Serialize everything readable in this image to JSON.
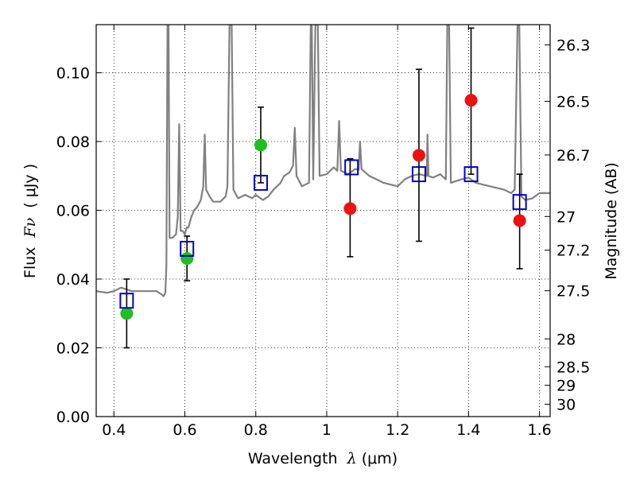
{
  "chart_data": {
    "type": "scatter",
    "xlabel_prefix": "Wavelength  ",
    "xlabel_symbol": "λ",
    "xlabel_unit": " (μm)",
    "ylabel_prefix": "Flux  ",
    "ylabel_symbol": "Fν",
    "ylabel_unit": "  ( μJy )",
    "y2label": "Magnitude (AB)",
    "xlim": [
      0.35,
      1.63
    ],
    "ylim": [
      0.0,
      0.114
    ],
    "x_ticks": [
      0.4,
      0.6,
      0.8,
      1.0,
      1.2,
      1.4,
      1.6
    ],
    "x_tick_labels": [
      "0.4",
      "0.6",
      "0.8",
      "1",
      "1.2",
      "1.4",
      "1.6"
    ],
    "y_ticks": [
      0.0,
      0.02,
      0.04,
      0.06,
      0.08,
      0.1
    ],
    "y_tick_labels": [
      "0.00",
      "0.02",
      "0.04",
      "0.06",
      "0.08",
      "0.10"
    ],
    "y2_ticks": [
      {
        "label": "26.3",
        "flux": 0.1081
      },
      {
        "label": "26.5",
        "flux": 0.0917
      },
      {
        "label": "26.7",
        "flux": 0.0761
      },
      {
        "label": "27",
        "flux": 0.0582
      },
      {
        "label": "27.2",
        "flux": 0.0484
      },
      {
        "label": "27.5",
        "flux": 0.0366
      },
      {
        "label": "28",
        "flux": 0.0226
      },
      {
        "label": "28.5",
        "flux": 0.0145
      },
      {
        "label": "29",
        "flux": 0.0091
      },
      {
        "label": "30",
        "flux": 0.0036
      }
    ],
    "grid": true,
    "colors": {
      "model": "#808080",
      "green": "#1fbf1f",
      "red": "#ee1111",
      "square": "#0000cc",
      "errorbar": "#000000"
    },
    "series": [
      {
        "kind": "errorbars",
        "points": [
          {
            "x": 0.436,
            "y": 0.03,
            "ylow": 0.02,
            "yhigh": 0.04
          },
          {
            "x": 0.606,
            "y": 0.046,
            "ylow": 0.0395,
            "yhigh": 0.0525
          },
          {
            "x": 0.814,
            "y": 0.079,
            "ylow": 0.068,
            "yhigh": 0.09
          },
          {
            "x": 1.066,
            "y": 0.0605,
            "ylow": 0.0465,
            "yhigh": 0.075
          },
          {
            "x": 1.26,
            "y": 0.076,
            "ylow": 0.051,
            "yhigh": 0.101
          },
          {
            "x": 1.407,
            "y": 0.092,
            "ylow": 0.0705,
            "yhigh": 0.113
          },
          {
            "x": 1.544,
            "y": 0.057,
            "ylow": 0.043,
            "yhigh": 0.0705
          }
        ]
      },
      {
        "kind": "observed-green",
        "points": [
          {
            "x": 0.436,
            "y": 0.03
          },
          {
            "x": 0.606,
            "y": 0.046
          },
          {
            "x": 0.814,
            "y": 0.079
          }
        ]
      },
      {
        "kind": "observed-red",
        "points": [
          {
            "x": 1.066,
            "y": 0.0605
          },
          {
            "x": 1.26,
            "y": 0.076
          },
          {
            "x": 1.407,
            "y": 0.092
          },
          {
            "x": 1.544,
            "y": 0.057
          }
        ]
      },
      {
        "kind": "model-squares",
        "points": [
          {
            "x": 0.436,
            "y": 0.0337
          },
          {
            "x": 0.606,
            "y": 0.0488
          },
          {
            "x": 0.814,
            "y": 0.068
          },
          {
            "x": 1.07,
            "y": 0.0725
          },
          {
            "x": 1.26,
            "y": 0.0705
          },
          {
            "x": 1.407,
            "y": 0.0705
          },
          {
            "x": 1.544,
            "y": 0.0624
          }
        ]
      },
      {
        "kind": "model-spectrum",
        "points": [
          [
            0.35,
            0.0365
          ],
          [
            0.38,
            0.036
          ],
          [
            0.4,
            0.0365
          ],
          [
            0.42,
            0.0375
          ],
          [
            0.45,
            0.0365
          ],
          [
            0.48,
            0.0365
          ],
          [
            0.5,
            0.0365
          ],
          [
            0.52,
            0.0365
          ],
          [
            0.535,
            0.0355
          ],
          [
            0.54,
            0.035
          ],
          [
            0.545,
            0.036
          ],
          [
            0.548,
            0.044
          ],
          [
            0.551,
            0.114
          ],
          [
            0.554,
            0.114
          ],
          [
            0.557,
            0.052
          ],
          [
            0.565,
            0.052
          ],
          [
            0.575,
            0.053
          ],
          [
            0.58,
            0.058
          ],
          [
            0.584,
            0.085
          ],
          [
            0.588,
            0.054
          ],
          [
            0.594,
            0.054
          ],
          [
            0.6,
            0.053
          ],
          [
            0.605,
            0.055
          ],
          [
            0.61,
            0.055
          ],
          [
            0.618,
            0.058
          ],
          [
            0.626,
            0.06
          ],
          [
            0.635,
            0.061
          ],
          [
            0.645,
            0.063
          ],
          [
            0.652,
            0.067
          ],
          [
            0.656,
            0.082
          ],
          [
            0.66,
            0.066
          ],
          [
            0.67,
            0.064
          ],
          [
            0.68,
            0.0625
          ],
          [
            0.7,
            0.0625
          ],
          [
            0.715,
            0.064
          ],
          [
            0.72,
            0.067
          ],
          [
            0.726,
            0.114
          ],
          [
            0.732,
            0.114
          ],
          [
            0.737,
            0.066
          ],
          [
            0.75,
            0.0635
          ],
          [
            0.77,
            0.0645
          ],
          [
            0.79,
            0.0635
          ],
          [
            0.8,
            0.0645
          ],
          [
            0.82,
            0.063
          ],
          [
            0.835,
            0.064
          ],
          [
            0.85,
            0.066
          ],
          [
            0.87,
            0.068
          ],
          [
            0.88,
            0.07
          ],
          [
            0.895,
            0.071
          ],
          [
            0.905,
            0.073
          ],
          [
            0.91,
            0.084
          ],
          [
            0.915,
            0.07
          ],
          [
            0.93,
            0.067
          ],
          [
            0.95,
            0.068
          ],
          [
            0.955,
            0.114
          ],
          [
            0.958,
            0.114
          ],
          [
            0.962,
            0.069
          ],
          [
            0.968,
            0.114
          ],
          [
            0.975,
            0.114
          ],
          [
            0.98,
            0.07
          ],
          [
            1.0,
            0.0705
          ],
          [
            1.01,
            0.0715
          ],
          [
            1.02,
            0.0725
          ],
          [
            1.03,
            0.0715
          ],
          [
            1.035,
            0.086
          ],
          [
            1.04,
            0.0715
          ],
          [
            1.06,
            0.0705
          ],
          [
            1.08,
            0.072
          ],
          [
            1.09,
            0.0718
          ],
          [
            1.094,
            0.08
          ],
          [
            1.098,
            0.072
          ],
          [
            1.12,
            0.07
          ],
          [
            1.16,
            0.068
          ],
          [
            1.2,
            0.067
          ],
          [
            1.22,
            0.069
          ],
          [
            1.24,
            0.07
          ],
          [
            1.26,
            0.0705
          ],
          [
            1.282,
            0.07
          ],
          [
            1.284,
            0.082
          ],
          [
            1.287,
            0.07
          ],
          [
            1.3,
            0.0695
          ],
          [
            1.32,
            0.0705
          ],
          [
            1.336,
            0.069
          ],
          [
            1.34,
            0.114
          ],
          [
            1.345,
            0.114
          ],
          [
            1.35,
            0.068
          ],
          [
            1.38,
            0.069
          ],
          [
            1.4,
            0.0695
          ],
          [
            1.42,
            0.068
          ],
          [
            1.46,
            0.067
          ],
          [
            1.5,
            0.066
          ],
          [
            1.52,
            0.065
          ],
          [
            1.53,
            0.066
          ],
          [
            1.538,
            0.114
          ],
          [
            1.543,
            0.114
          ],
          [
            1.549,
            0.064
          ],
          [
            1.56,
            0.063
          ],
          [
            1.58,
            0.0635
          ],
          [
            1.6,
            0.065
          ],
          [
            1.63,
            0.065
          ]
        ]
      }
    ]
  }
}
